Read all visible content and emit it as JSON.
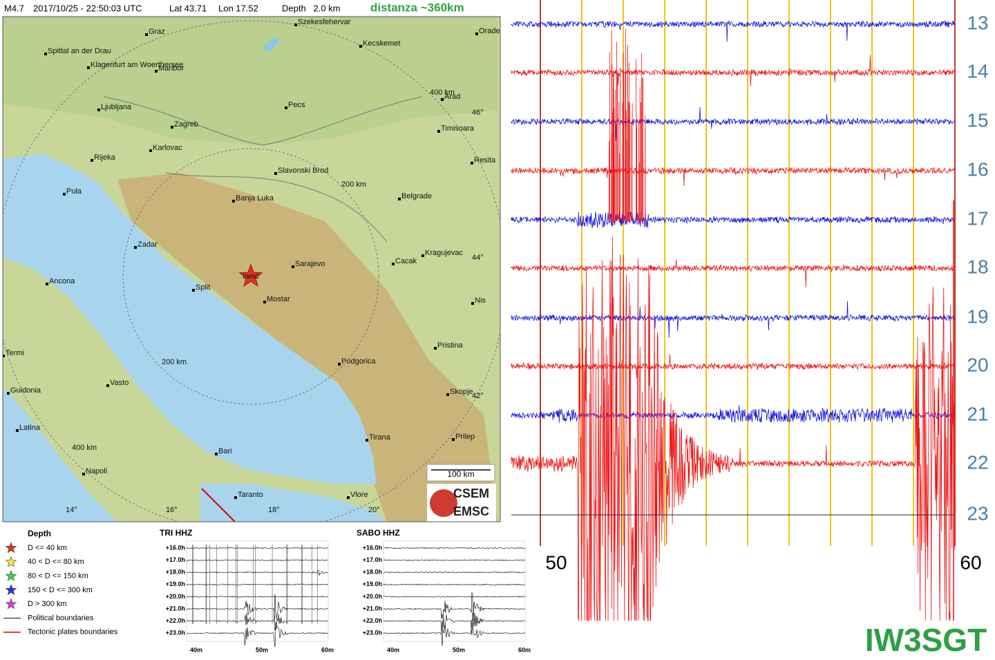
{
  "header": {
    "magnitude": "M4.7",
    "datetime": "2017/10/25 - 22:50:03 UTC",
    "lat": "Lat 43.71",
    "lon": "Lon 17.52",
    "depth": "Depth   2.0 km",
    "distance": "distanza ~360km"
  },
  "map": {
    "cities": [
      "Graz",
      "Szekesfehervar",
      "Kecskemet",
      "Orade",
      "Spittal an der Drau",
      "Klagenfurt am Woerthersee",
      "Maribor",
      "Ljubljana",
      "Pecs",
      "Arad",
      "Zagreb",
      "Timisoara",
      "Karlovac",
      "Rijeka",
      "Slavonski Brod",
      "Resita",
      "Pula",
      "Banja Luka",
      "Belgrade",
      "Zadar",
      "Kragujevac",
      "Sarajevo",
      "Cacak",
      "Ancona",
      "Split",
      "Mostar",
      "Nis",
      "Pristina",
      "Termi",
      "Podgorica",
      "Guidonia",
      "Vasto",
      "Skopje",
      "Latina",
      "Tirana",
      "Prilep",
      "Bari",
      "Napoli",
      "Taranto",
      "Vlore"
    ],
    "lat_labels": [
      "46°",
      "44°",
      "42°"
    ],
    "lon_labels": [
      "14°",
      "16°",
      "18°",
      "20°"
    ],
    "ring_labels": [
      "400 km",
      "200 km",
      "200 km",
      "400 km"
    ],
    "epicenter_label": "EMSC",
    "scale": "100 km",
    "logo": [
      "CSEM",
      "EMSC"
    ]
  },
  "legend": {
    "title": "Depth",
    "items": [
      "D <= 40 km",
      "40 < D <= 80 km",
      "80 < D <= 150 km",
      "150 < D <= 300 km",
      "D > 300 km",
      "Political boundaries",
      "Tectonic plates boundaries"
    ]
  },
  "stations": [
    {
      "name": "TRI HHZ",
      "hours": [
        "+16.0h",
        "+17.0h",
        "+18.0h",
        "+19.0h",
        "+20.0h",
        "+21.0h",
        "+22.0h",
        "+23.0h"
      ],
      "minutes": [
        "40m",
        "50m",
        "60m"
      ]
    },
    {
      "name": "SABO HHZ",
      "hours": [
        "+16.0h",
        "+17.0h",
        "+18.0h",
        "+19.0h",
        "+20.0h",
        "+21.0h",
        "+22.0h",
        "+23.0h"
      ],
      "minutes": [
        "40m",
        "50m",
        "60m"
      ]
    }
  ],
  "seismogram": {
    "hours": [
      13,
      14,
      15,
      16,
      17,
      18,
      19,
      20,
      21,
      22,
      23
    ],
    "minutes": [
      50,
      60
    ],
    "callsign": "IW3SGT"
  }
}
